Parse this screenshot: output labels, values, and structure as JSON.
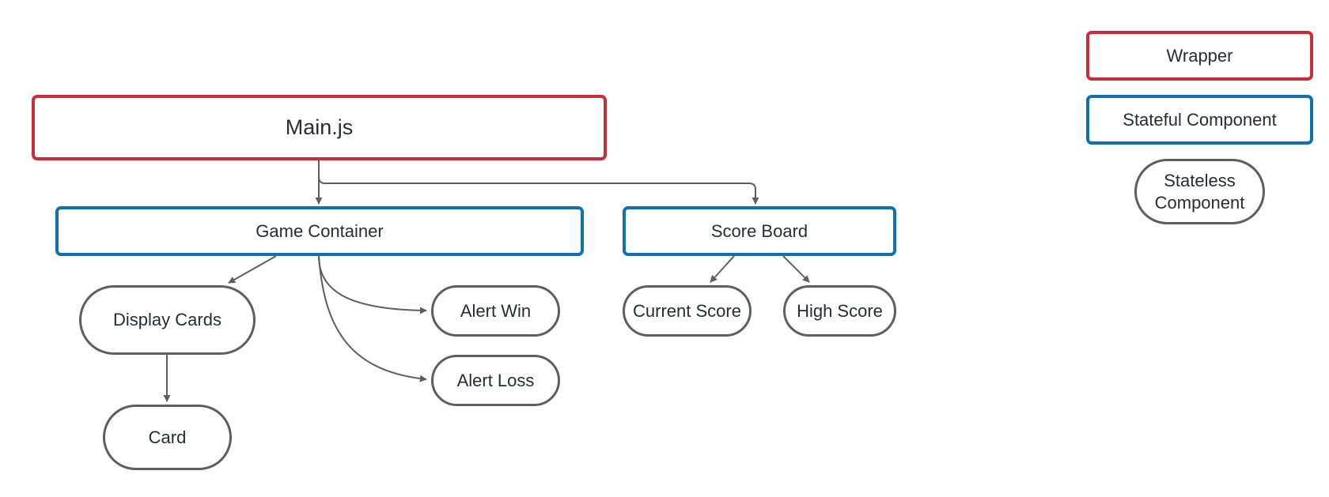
{
  "nodes": {
    "main": {
      "label": "Main.js",
      "kind": "wrapper"
    },
    "game_container": {
      "label": "Game Container",
      "kind": "stateful"
    },
    "score_board": {
      "label": "Score Board",
      "kind": "stateful"
    },
    "display_cards": {
      "label": "Display Cards",
      "kind": "stateless"
    },
    "alert_win": {
      "label": "Alert Win",
      "kind": "stateless"
    },
    "alert_loss": {
      "label": "Alert Loss",
      "kind": "stateless"
    },
    "card": {
      "label": "Card",
      "kind": "stateless"
    },
    "current_score": {
      "label": "Current Score",
      "kind": "stateless"
    },
    "high_score": {
      "label": "High Score",
      "kind": "stateless"
    }
  },
  "edges": [
    {
      "from": "main",
      "to": "game_container"
    },
    {
      "from": "main",
      "to": "score_board"
    },
    {
      "from": "game_container",
      "to": "display_cards"
    },
    {
      "from": "game_container",
      "to": "alert_win"
    },
    {
      "from": "game_container",
      "to": "alert_loss"
    },
    {
      "from": "display_cards",
      "to": "card"
    },
    {
      "from": "score_board",
      "to": "current_score"
    },
    {
      "from": "score_board",
      "to": "high_score"
    }
  ],
  "legend": {
    "wrapper": {
      "label": "Wrapper",
      "color": "#c92d39"
    },
    "stateful": {
      "label": "Stateful Component",
      "color": "#1071b2"
    },
    "stateless": {
      "label": "Stateless Component",
      "color": "#5e5e5e"
    }
  },
  "colors": {
    "edge": "#5e5e5e",
    "text": "#282c33"
  }
}
